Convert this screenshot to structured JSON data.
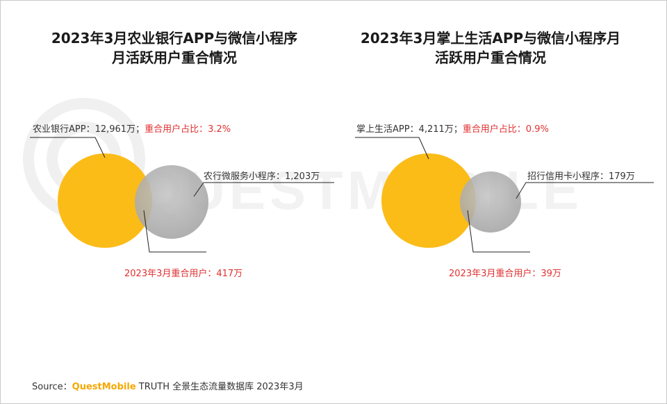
{
  "colors": {
    "primary_circle": "#fbbc18",
    "secondary_circle": "#a9a9a9",
    "highlight_text": "#e03030",
    "brand": "#f5a800",
    "leader_line": "#222222",
    "watermark": "#f1f1f1"
  },
  "watermark": "QUESTMOBILE",
  "chart_data": [
    {
      "type": "venn",
      "title": "2023年3月农业银行APP与微信小程序月活跃用户重合情况",
      "title_lines": [
        "2023年3月农业银行APP与微信小程序",
        "月活跃用户重合情况"
      ],
      "sets": [
        {
          "name": "农业银行APP",
          "value": 12961,
          "unit": "万",
          "label": "农业银行APP：12,961万；"
        },
        {
          "name": "农行微服务小程序",
          "value": 1203,
          "unit": "万",
          "label": "农行微服务小程序：1,203万"
        }
      ],
      "overlap_ratio_label": "重合用户占比：3.2%",
      "overlap_ratio": 3.2,
      "overlap": {
        "value": 417,
        "unit": "万",
        "label": "2023年3月重合用户：417万"
      }
    },
    {
      "type": "venn",
      "title": "2023年3月掌上生活APP与微信小程序月活跃用户重合情况",
      "title_lines": [
        "2023年3月掌上生活APP与微信小程序月",
        "活跃用户重合情况"
      ],
      "sets": [
        {
          "name": "掌上生活APP",
          "value": 4211,
          "unit": "万",
          "label": "掌上生活APP：4,211万；"
        },
        {
          "name": "招行信用卡小程序",
          "value": 179,
          "unit": "万",
          "label": "招行信用卡小程序：179万"
        }
      ],
      "overlap_ratio_label": "重合用户占比：0.9%",
      "overlap_ratio": 0.9,
      "overlap": {
        "value": 39,
        "unit": "万",
        "label": "2023年3月重合用户：39万"
      }
    }
  ],
  "source": {
    "prefix": "Source：",
    "brand": "QuestMobile",
    "suffix": " TRUTH 全景生态流量数据库 2023年3月"
  }
}
